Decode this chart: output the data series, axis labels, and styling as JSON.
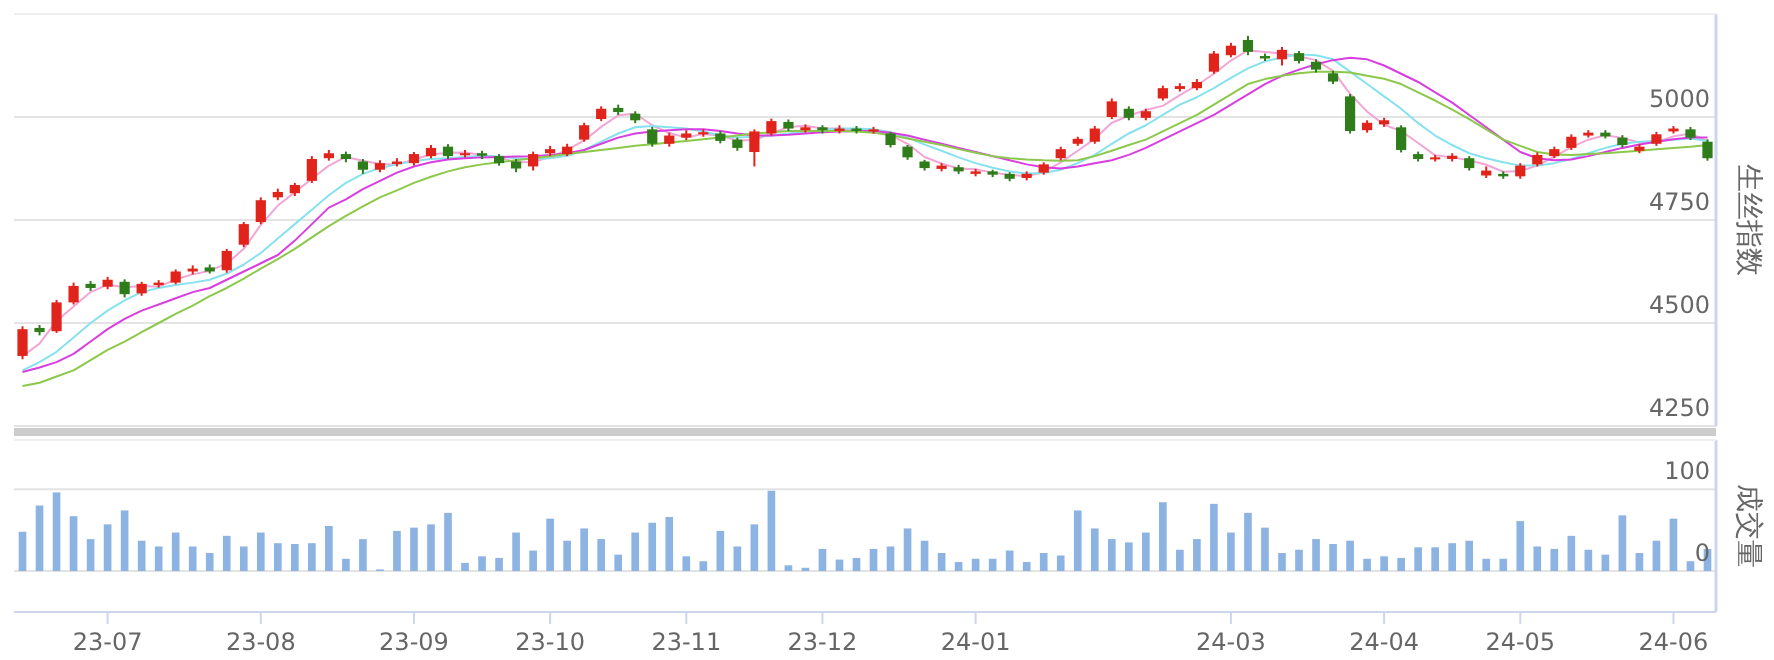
{
  "chart_data": [
    {
      "type": "candlestick",
      "ylabel": "生丝指数",
      "ylim": [
        4250,
        5250
      ],
      "yticks": [
        4250,
        4500,
        4750,
        5000
      ],
      "grid": "y",
      "tick_labels": "y",
      "categories": [
        null,
        null,
        null,
        null,
        null,
        null,
        null,
        null,
        null,
        null,
        null,
        null,
        null,
        null,
        null,
        null,
        null,
        null,
        null,
        null,
        null,
        null,
        null,
        null,
        null,
        null,
        null,
        null,
        null,
        null,
        null,
        null,
        null,
        null,
        null,
        null,
        null,
        null,
        null,
        null,
        null,
        null,
        null,
        null,
        null,
        null,
        null,
        null,
        null,
        null,
        null,
        null,
        null,
        null,
        null,
        null,
        null,
        null,
        null,
        null,
        null,
        null,
        null,
        null,
        null,
        null,
        null,
        null,
        null,
        null,
        null,
        null,
        null,
        null,
        null,
        null,
        null,
        null,
        null,
        null,
        null,
        null,
        null,
        null,
        null,
        null,
        null,
        null,
        null,
        null,
        null,
        null,
        null,
        null,
        null,
        null,
        null,
        null,
        null,
        null
      ],
      "ohlc": [
        [
          4420,
          4492,
          4412,
          4485
        ],
        [
          4488,
          4495,
          4470,
          4478
        ],
        [
          4480,
          4556,
          4476,
          4550
        ],
        [
          4550,
          4598,
          4545,
          4590
        ],
        [
          4595,
          4602,
          4578,
          4585
        ],
        [
          4588,
          4612,
          4582,
          4605
        ],
        [
          4600,
          4606,
          4562,
          4570
        ],
        [
          4572,
          4600,
          4566,
          4595
        ],
        [
          4592,
          4604,
          4586,
          4598
        ],
        [
          4598,
          4630,
          4594,
          4625
        ],
        [
          4625,
          4640,
          4618,
          4632
        ],
        [
          4635,
          4642,
          4620,
          4625
        ],
        [
          4628,
          4680,
          4622,
          4675
        ],
        [
          4690,
          4745,
          4684,
          4740
        ],
        [
          4745,
          4805,
          4740,
          4798
        ],
        [
          4805,
          4826,
          4798,
          4818
        ],
        [
          4815,
          4840,
          4808,
          4835
        ],
        [
          4845,
          4905,
          4840,
          4898
        ],
        [
          4900,
          4920,
          4894,
          4912
        ],
        [
          4910,
          4916,
          4890,
          4898
        ],
        [
          4892,
          4898,
          4862,
          4872
        ],
        [
          4872,
          4895,
          4866,
          4888
        ],
        [
          4886,
          4900,
          4880,
          4892
        ],
        [
          4888,
          4915,
          4882,
          4910
        ],
        [
          4905,
          4932,
          4900,
          4925
        ],
        [
          4928,
          4934,
          4898,
          4905
        ],
        [
          4908,
          4920,
          4902,
          4912
        ],
        [
          4912,
          4918,
          4898,
          4906
        ],
        [
          4905,
          4910,
          4882,
          4888
        ],
        [
          4892,
          4898,
          4866,
          4875
        ],
        [
          4880,
          4916,
          4870,
          4910
        ],
        [
          4912,
          4930,
          4905,
          4922
        ],
        [
          4910,
          4935,
          4905,
          4928
        ],
        [
          4945,
          4986,
          4940,
          4980
        ],
        [
          4995,
          5026,
          4990,
          5020
        ],
        [
          5022,
          5030,
          5005,
          5012
        ],
        [
          5008,
          5014,
          4985,
          4992
        ],
        [
          4970,
          4976,
          4928,
          4935
        ],
        [
          4935,
          4962,
          4928,
          4955
        ],
        [
          4950,
          4968,
          4944,
          4960
        ],
        [
          4958,
          4970,
          4952,
          4963
        ],
        [
          4960,
          4966,
          4936,
          4942
        ],
        [
          4945,
          4950,
          4918,
          4925
        ],
        [
          4915,
          4970,
          4880,
          4965
        ],
        [
          4960,
          4996,
          4955,
          4990
        ],
        [
          4988,
          4994,
          4966,
          4972
        ],
        [
          4968,
          4982,
          4962,
          4975
        ],
        [
          4975,
          4980,
          4960,
          4968
        ],
        [
          4966,
          4980,
          4960,
          4972
        ],
        [
          4972,
          4978,
          4960,
          4966
        ],
        [
          4965,
          4976,
          4960,
          4970
        ],
        [
          4960,
          4964,
          4926,
          4932
        ],
        [
          4928,
          4932,
          4896,
          4902
        ],
        [
          4892,
          4896,
          4870,
          4876
        ],
        [
          4874,
          4888,
          4868,
          4882
        ],
        [
          4878,
          4884,
          4862,
          4868
        ],
        [
          4862,
          4874,
          4856,
          4868
        ],
        [
          4868,
          4872,
          4854,
          4860
        ],
        [
          4862,
          4866,
          4844,
          4850
        ],
        [
          4852,
          4868,
          4846,
          4862
        ],
        [
          4865,
          4890,
          4860,
          4885
        ],
        [
          4900,
          4928,
          4895,
          4922
        ],
        [
          4935,
          4952,
          4930,
          4947
        ],
        [
          4940,
          4978,
          4935,
          4972
        ],
        [
          5000,
          5045,
          4995,
          5038
        ],
        [
          5020,
          5026,
          4992,
          4998
        ],
        [
          4998,
          5020,
          4992,
          5014
        ],
        [
          5045,
          5076,
          5040,
          5070
        ],
        [
          5068,
          5082,
          5062,
          5075
        ],
        [
          5070,
          5092,
          5065,
          5085
        ],
        [
          5110,
          5160,
          5105,
          5154
        ],
        [
          5150,
          5180,
          5145,
          5173
        ],
        [
          5187,
          5197,
          5150,
          5158
        ],
        [
          5148,
          5154,
          5136,
          5142
        ],
        [
          5140,
          5170,
          5125,
          5163
        ],
        [
          5155,
          5160,
          5130,
          5136
        ],
        [
          5134,
          5140,
          5108,
          5115
        ],
        [
          5106,
          5112,
          5080,
          5086
        ],
        [
          5050,
          5056,
          4960,
          4966
        ],
        [
          4968,
          4992,
          4962,
          4986
        ],
        [
          4982,
          4998,
          4976,
          4992
        ],
        [
          4975,
          4980,
          4914,
          4920
        ],
        [
          4910,
          4916,
          4892,
          4898
        ],
        [
          4898,
          4908,
          4892,
          4902
        ],
        [
          4898,
          4912,
          4892,
          4906
        ],
        [
          4900,
          4905,
          4870,
          4876
        ],
        [
          4858,
          4880,
          4852,
          4870
        ],
        [
          4862,
          4868,
          4850,
          4856
        ],
        [
          4856,
          4888,
          4850,
          4882
        ],
        [
          4885,
          4914,
          4880,
          4908
        ],
        [
          4905,
          4928,
          4900,
          4922
        ],
        [
          4925,
          4958,
          4920,
          4952
        ],
        [
          4955,
          4968,
          4950,
          4962
        ],
        [
          4962,
          4968,
          4948,
          4953
        ],
        [
          4950,
          4956,
          4926,
          4932
        ],
        [
          4918,
          4934,
          4912,
          4928
        ],
        [
          4935,
          4964,
          4930,
          4958
        ],
        [
          4965,
          4978,
          4960,
          4972
        ],
        [
          4970,
          4976,
          4944,
          4950
        ],
        [
          4940,
          4946,
          4894,
          4900
        ]
      ],
      "series": [
        {
          "type": "line",
          "color": "#f2a6d6",
          "values": [
            4420,
            4450,
            4505,
            4540,
            4575,
            4593,
            4587,
            4590,
            4588,
            4606,
            4618,
            4627,
            4644,
            4680,
            4738,
            4785,
            4817,
            4850,
            4882,
            4903,
            4894,
            4886,
            4884,
            4897,
            4909,
            4913,
            4914,
            4908,
            4902,
            4890,
            4891,
            4902,
            4920,
            4943,
            4976,
            5004,
            5008,
            4980,
            4961,
            4950,
            4959,
            4955,
            4943,
            4944,
            4960,
            4976,
            4979,
            4972,
            4972,
            4969,
            4969,
            4956,
            4935,
            4903,
            4887,
            4875,
            4873,
            4865,
            4859,
            4857,
            4866,
            4890,
            4918,
            4947,
            4986,
            5003,
            5017,
            5027,
            5053,
            5077,
            5105,
            5137,
            5162,
            5158,
            5154,
            5147,
            5138,
            5112,
            5056,
            5013,
            4981,
            4966,
            4937,
            4907,
            4902,
            4895,
            4884,
            4867,
            4869,
            4882,
            4904,
            4927,
            4945,
            4956,
            4949,
            4938,
            4939,
            4953,
            4960,
            4941
          ]
        },
        {
          "type": "line",
          "color": "#86e2ee",
          "values": [
            4385,
            4405,
            4430,
            4465,
            4500,
            4530,
            4555,
            4575,
            4585,
            4592,
            4598,
            4605,
            4620,
            4642,
            4670,
            4705,
            4740,
            4775,
            4810,
            4840,
            4862,
            4876,
            4885,
            4893,
            4898,
            4900,
            4903,
            4906,
            4904,
            4900,
            4898,
            4900,
            4906,
            4920,
            4940,
            4960,
            4975,
            4978,
            4975,
            4972,
            4965,
            4955,
            4950,
            4952,
            4955,
            4960,
            4965,
            4968,
            4972,
            4972,
            4970,
            4963,
            4950,
            4933,
            4918,
            4902,
            4888,
            4877,
            4868,
            4863,
            4864,
            4872,
            4888,
            4908,
            4935,
            4960,
            4980,
            5005,
            5030,
            5048,
            5070,
            5095,
            5118,
            5135,
            5145,
            5152,
            5150,
            5140,
            5110,
            5080,
            5050,
            5020,
            4985,
            4955,
            4932,
            4912,
            4900,
            4890,
            4882,
            4882,
            4888,
            4898,
            4912,
            4925,
            4935,
            4940,
            4942,
            4945,
            4948,
            4942
          ]
        },
        {
          "type": "line",
          "color": "#d83ee0",
          "values": [
            4381,
            4392,
            4405,
            4425,
            4455,
            4485,
            4510,
            4530,
            4545,
            4560,
            4575,
            4585,
            4605,
            4625,
            4645,
            4665,
            4700,
            4740,
            4780,
            4800,
            4825,
            4845,
            4865,
            4880,
            4890,
            4897,
            4900,
            4902,
            4903,
            4904,
            4905,
            4908,
            4912,
            4920,
            4935,
            4950,
            4960,
            4965,
            4968,
            4970,
            4970,
            4966,
            4960,
            4955,
            4955,
            4957,
            4960,
            4963,
            4965,
            4966,
            4966,
            4962,
            4955,
            4945,
            4935,
            4925,
            4915,
            4905,
            4895,
            4885,
            4878,
            4875,
            4880,
            4888,
            4895,
            4908,
            4925,
            4945,
            4965,
            4985,
            5005,
            5030,
            5055,
            5080,
            5100,
            5115,
            5128,
            5138,
            5144,
            5140,
            5125,
            5105,
            5085,
            5060,
            5035,
            5005,
            4975,
            4945,
            4915,
            4900,
            4895,
            4897,
            4905,
            4915,
            4925,
            4933,
            4940,
            4946,
            4950,
            4950
          ]
        },
        {
          "type": "line",
          "color": "#8cc84b",
          "values": [
            4347,
            4355,
            4370,
            4385,
            4410,
            4435,
            4455,
            4478,
            4500,
            4522,
            4542,
            4565,
            4585,
            4608,
            4632,
            4655,
            4680,
            4708,
            4735,
            4760,
            4783,
            4805,
            4822,
            4840,
            4855,
            4868,
            4878,
            4885,
            4890,
            4895,
            4900,
            4905,
            4910,
            4915,
            4920,
            4925,
            4930,
            4934,
            4938,
            4942,
            4946,
            4950,
            4955,
            4960,
            4963,
            4966,
            4966,
            4966,
            4966,
            4965,
            4962,
            4956,
            4948,
            4940,
            4932,
            4922,
            4913,
            4905,
            4900,
            4897,
            4895,
            4894,
            4895,
            4905,
            4918,
            4932,
            4945,
            4965,
            4985,
            5005,
            5030,
            5055,
            5080,
            5092,
            5100,
            5106,
            5110,
            5110,
            5108,
            5100,
            5093,
            5080,
            5060,
            5040,
            5018,
            4995,
            4970,
            4945,
            4930,
            4915,
            4909,
            4908,
            4910,
            4912,
            4915,
            4918,
            4922,
            4925,
            4928,
            4932
          ]
        }
      ]
    },
    {
      "type": "bar",
      "ylabel": "成交量",
      "ylim": [
        -50,
        160
      ],
      "yticks": [
        0,
        100
      ],
      "grid": "y",
      "color": "#8db3e2",
      "categories": [
        null,
        null,
        null,
        null,
        null,
        "23-07",
        null,
        null,
        null,
        null,
        null,
        null,
        null,
        null,
        "23-08",
        null,
        null,
        null,
        null,
        null,
        null,
        null,
        null,
        "23-09",
        null,
        null,
        null,
        null,
        null,
        null,
        null,
        "23-10",
        null,
        null,
        null,
        null,
        null,
        null,
        null,
        "23-11",
        null,
        null,
        null,
        null,
        null,
        null,
        null,
        "23-12",
        null,
        null,
        null,
        null,
        null,
        null,
        null,
        null,
        "24-01",
        null,
        null,
        null,
        null,
        null,
        null,
        null,
        null,
        null,
        null,
        null,
        null,
        null,
        null,
        "24-03",
        null,
        null,
        null,
        null,
        null,
        null,
        null,
        null,
        "24-04",
        null,
        null,
        null,
        null,
        null,
        null,
        null,
        "24-05",
        null,
        null,
        null,
        null,
        null,
        null,
        null,
        null,
        "24-06",
        null,
        null
      ],
      "values": [
        48,
        80,
        96,
        67,
        39,
        57,
        74,
        37,
        30,
        47,
        30,
        22,
        43,
        30,
        47,
        34,
        33,
        34,
        55,
        15,
        39,
        2,
        49,
        53,
        57,
        71,
        10,
        18,
        16,
        47,
        25,
        64,
        37,
        52,
        39,
        20,
        47,
        59,
        66,
        18,
        12,
        49,
        30,
        57,
        98,
        7,
        4,
        27,
        14,
        16,
        27,
        30,
        52,
        37,
        22,
        11,
        15,
        15,
        25,
        11,
        22,
        19,
        74,
        52,
        39,
        35,
        47,
        84,
        26,
        39,
        82,
        47,
        71,
        53,
        22,
        26,
        39,
        33,
        37,
        15,
        18,
        16,
        29,
        29,
        34,
        37,
        15,
        15,
        61,
        30,
        27,
        43,
        26,
        20,
        68,
        22,
        37,
        64,
        12,
        27
      ]
    }
  ]
}
